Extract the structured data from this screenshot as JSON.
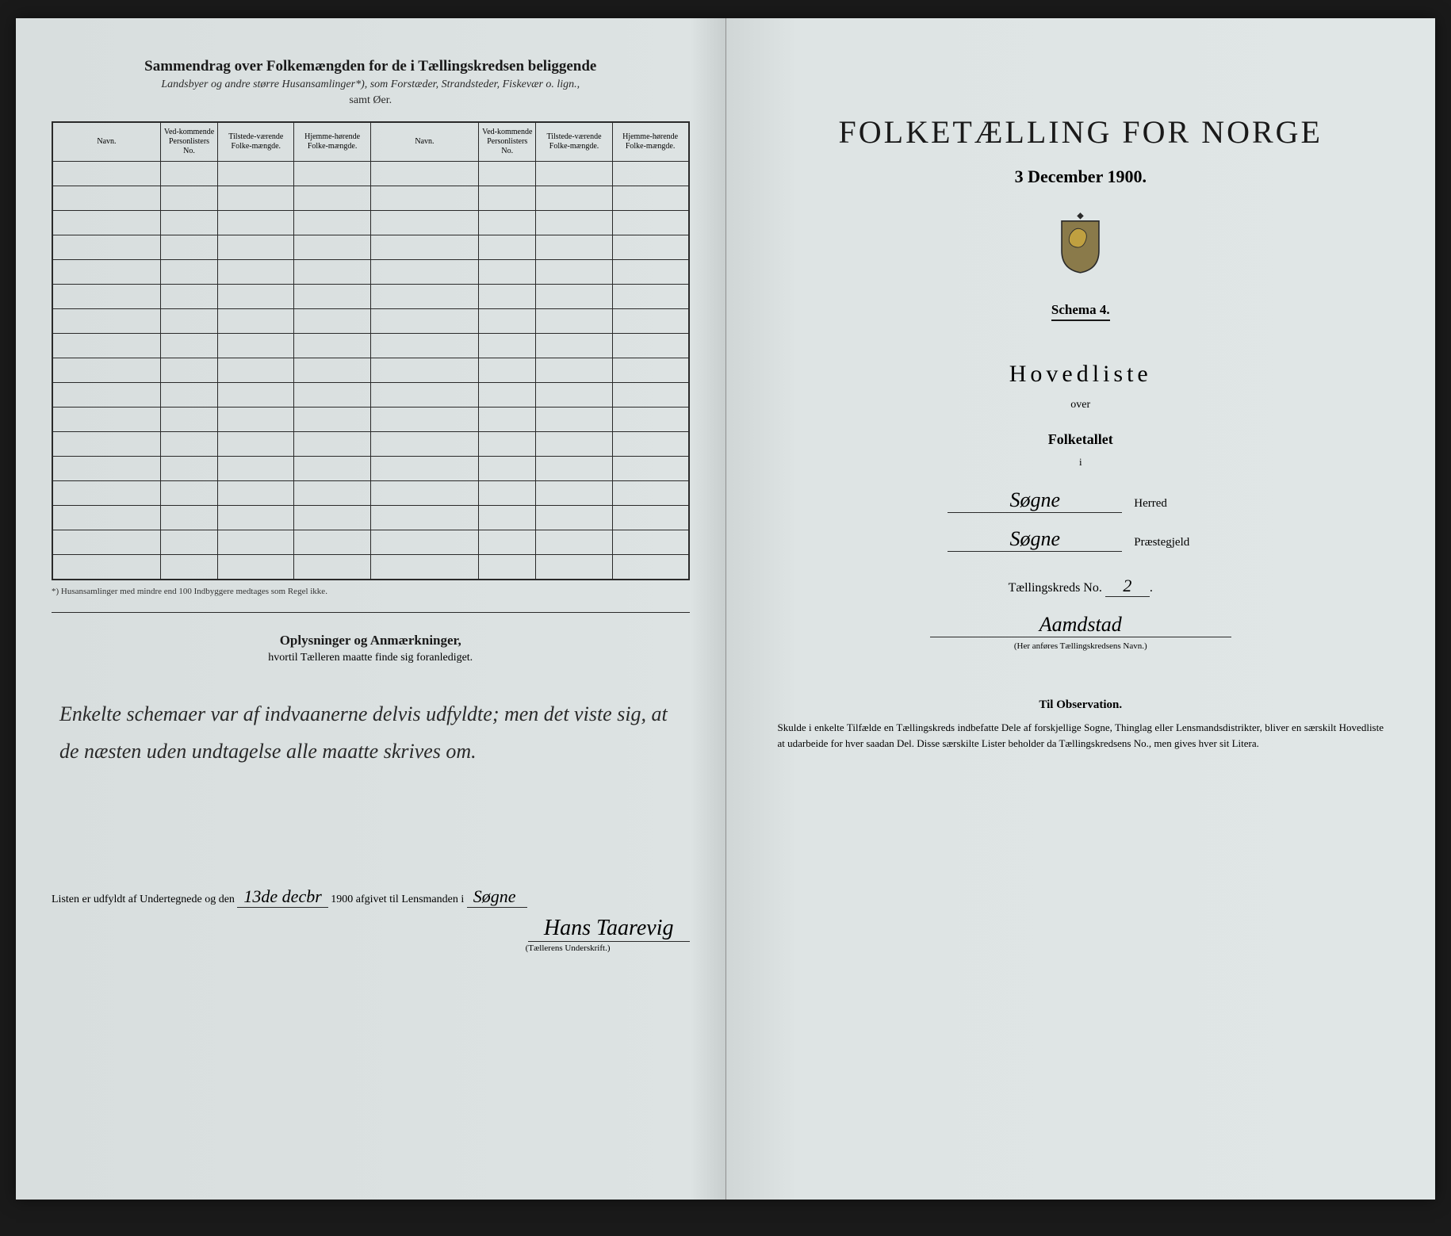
{
  "left": {
    "title": "Sammendrag over Folkemængden for de i Tællingskredsen beliggende",
    "sub1": "Landsbyer og andre større Husansamlinger*), som Forstæder, Strandsteder, Fiskevær o. lign.,",
    "sub2": "samt Øer.",
    "columns": {
      "navn": "Navn.",
      "vedk": "Ved-kommende Personlisters No.",
      "tilstede": "Tilstede-værende Folke-mængde.",
      "hjemme": "Hjemme-hørende Folke-mængde."
    },
    "footnote": "*) Husansamlinger med mindre end 100 Indbyggere medtages som Regel ikke.",
    "oplys_title": "Oplysninger og Anmærkninger,",
    "oplys_sub": "hvortil Tælleren maatte finde sig foranlediget.",
    "handwriting": "Enkelte schemaer var af indvaanerne delvis udfyldte; men det viste sig, at de næsten uden undtagelse alle maatte skrives om.",
    "bottom_text1": "Listen er udfyldt af Undertegnede og den",
    "bottom_date": "13de decbr",
    "bottom_year": "1900",
    "bottom_text2": "afgivet til Lensmanden i",
    "bottom_place": "Søgne",
    "signature": "Hans Taarevig",
    "sig_label": "(Tællerens Underskrift.)"
  },
  "right": {
    "main_title": "FOLKETÆLLING FOR NORGE",
    "date": "3 December 1900.",
    "schema": "Schema 4.",
    "hovedliste": "Hovedliste",
    "over": "over",
    "folketallet": "Folketallet",
    "i": "i",
    "herred_value": "Søgne",
    "herred_label": "Herred",
    "praeste_value": "Søgne",
    "praeste_label": "Præstegjeld",
    "kreds_label": "Tællingskreds No.",
    "kreds_no": "2",
    "kreds_name": "Aamdstad",
    "name_note": "(Her anføres Tællingskredsens Navn.)",
    "obs_title": "Til Observation.",
    "obs_text": "Skulde i enkelte Tilfælde en Tællingskreds indbefatte Dele af forskjellige Sogne, Thinglag eller Lensmandsdistrikter, bliver en særskilt Hovedliste at udarbeide for hver saadan Del. Disse særskilte Lister beholder da Tællingskredsens No., men gives hver sit Litera."
  },
  "style": {
    "page_bg": "#dde3e3",
    "ink": "#1a1a1a",
    "rows": 17
  }
}
